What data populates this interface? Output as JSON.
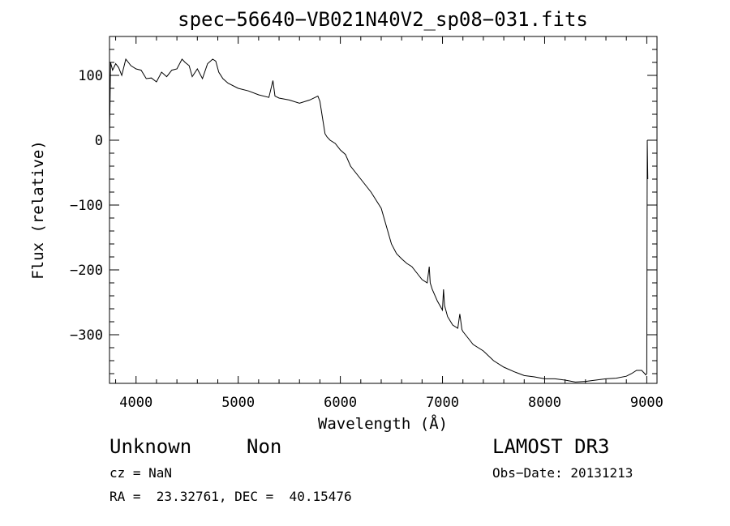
{
  "chart_data": {
    "type": "line",
    "title": "spec−56640−VB021N40V2_sp08−031.fits",
    "xlabel": "Wavelength (Å)",
    "ylabel": "Flux (relative)",
    "xlim": [
      3740,
      9100
    ],
    "ylim": [
      -375,
      160
    ],
    "xticks": [
      4000,
      5000,
      6000,
      7000,
      8000,
      9000
    ],
    "xtick_labels": [
      "4000",
      "5000",
      "6000",
      "7000",
      "8000",
      "9000"
    ],
    "yticks": [
      100,
      0,
      -100,
      -200,
      -300
    ],
    "ytick_labels": [
      "100",
      "0",
      "−100",
      "−200",
      "−300"
    ],
    "series": [
      {
        "name": "spectrum",
        "x": [
          3740,
          3750,
          3770,
          3800,
          3830,
          3860,
          3900,
          3950,
          4000,
          4050,
          4100,
          4150,
          4200,
          4250,
          4300,
          4350,
          4400,
          4450,
          4480,
          4520,
          4550,
          4600,
          4650,
          4700,
          4750,
          4780,
          4810,
          4850,
          4900,
          5000,
          5100,
          5200,
          5300,
          5340,
          5360,
          5400,
          5500,
          5600,
          5700,
          5780,
          5800,
          5820,
          5850,
          5870,
          5900,
          5950,
          6000,
          6050,
          6100,
          6200,
          6300,
          6400,
          6500,
          6550,
          6600,
          6650,
          6700,
          6750,
          6800,
          6850,
          6870,
          6880,
          6900,
          6950,
          7000,
          7010,
          7020,
          7050,
          7100,
          7150,
          7170,
          7190,
          7200,
          7250,
          7300,
          7400,
          7500,
          7600,
          7700,
          7800,
          7900,
          8000,
          8100,
          8200,
          8300,
          8400,
          8500,
          8600,
          8700,
          8800,
          8850,
          8900,
          8950,
          8980,
          8990,
          9000,
          9005,
          9010
        ],
        "y": [
          0,
          120,
          108,
          118,
          112,
          100,
          125,
          115,
          110,
          108,
          95,
          96,
          90,
          105,
          98,
          108,
          110,
          125,
          120,
          115,
          98,
          110,
          95,
          118,
          125,
          122,
          105,
          95,
          88,
          80,
          76,
          70,
          66,
          92,
          68,
          65,
          62,
          57,
          62,
          68,
          60,
          40,
          10,
          5,
          0,
          -5,
          -15,
          -22,
          -40,
          -60,
          -80,
          -105,
          -160,
          -175,
          -183,
          -190,
          -195,
          -205,
          -215,
          -220,
          -195,
          -220,
          -230,
          -248,
          -262,
          -230,
          -255,
          -272,
          -285,
          -290,
          -268,
          -292,
          -295,
          -305,
          -315,
          -325,
          -340,
          -350,
          -357,
          -363,
          -365,
          -368,
          -368,
          -370,
          -373,
          -372,
          -370,
          -368,
          -367,
          -364,
          -360,
          -355,
          -355,
          -360,
          -362,
          -360,
          0,
          -60
        ]
      }
    ]
  },
  "info": {
    "class": "Unknown",
    "subclass": "Non",
    "survey": "LAMOST DR3",
    "cz": "cz = NaN",
    "obs_date": "Obs−Date: 20131213",
    "coords": "RA =  23.32761, DEC =  40.15476"
  }
}
